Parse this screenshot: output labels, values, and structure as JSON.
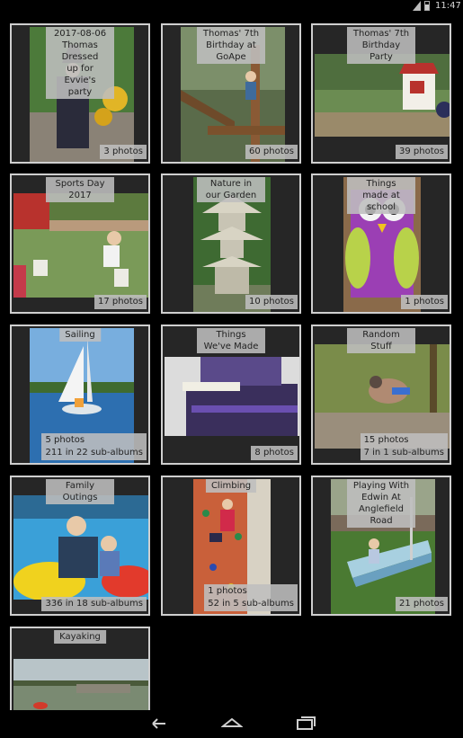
{
  "status_bar": {
    "time": "11:47",
    "icons": [
      "signal-icon",
      "battery-icon"
    ]
  },
  "albums": [
    {
      "title": "2017-08-06 Thomas Dressed\nup for Evvie's party",
      "counts": [
        "3 photos"
      ]
    },
    {
      "title": "Thomas' 7th Birthday at\nGoApe",
      "counts": [
        "60 photos"
      ]
    },
    {
      "title": "Thomas' 7th Birthday Party",
      "counts": [
        "39 photos"
      ]
    },
    {
      "title": "Sports Day 2017",
      "counts": [
        "17 photos"
      ]
    },
    {
      "title": "Nature in our Garden",
      "counts": [
        "10 photos"
      ]
    },
    {
      "title": "Things made at school",
      "counts": [
        "1 photos"
      ]
    },
    {
      "title": "Sailing",
      "counts": [
        "5 photos",
        "211 in 22 sub-albums"
      ]
    },
    {
      "title": "Things We've Made",
      "counts": [
        "8 photos"
      ]
    },
    {
      "title": "Random Stuff",
      "counts": [
        "15 photos",
        "7 in 1 sub-albums"
      ]
    },
    {
      "title": "Family Outings",
      "counts": [
        "336 in 18 sub-albums"
      ]
    },
    {
      "title": "Climbing",
      "counts": [
        "1 photos",
        "52 in 5 sub-albums"
      ]
    },
    {
      "title": "Playing With Edwin At\nAnglefield Road",
      "counts": [
        "21 photos"
      ]
    },
    {
      "title": "Kayaking",
      "counts": []
    }
  ],
  "nav_bar": {
    "buttons": [
      "back-icon",
      "home-icon",
      "recents-icon"
    ]
  }
}
